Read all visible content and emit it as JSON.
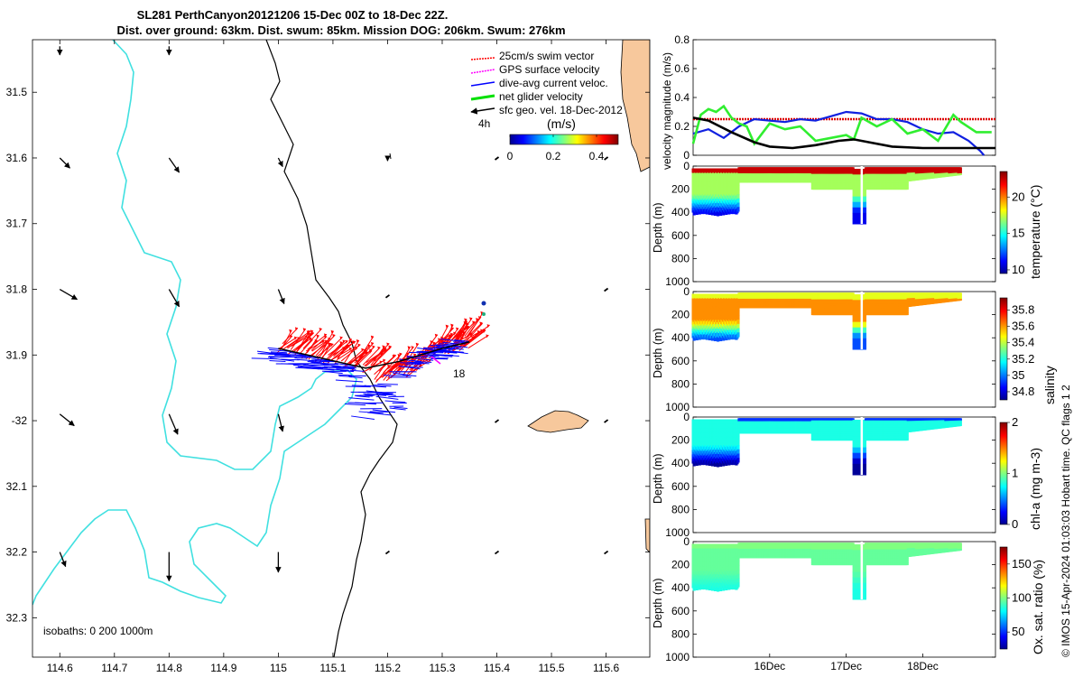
{
  "colors": {
    "land": "#f7c89c",
    "isobath_200": "#40e0e0",
    "isobath_1000": "#000000",
    "swim_vector": "#ff0000",
    "gps_velocity": "#ff00ff",
    "dive_avg": "#0000ff",
    "net_glider": "#00e000",
    "sfc_geo": "#000000"
  },
  "title": {
    "line1": "SL281 PerthCanyon20121206 15-Dec 00Z to 18-Dec 22Z.",
    "line2": "Dist. over ground: 63km. Dist. swum: 85km. Mission DOG: 206km. Swum: 276km"
  },
  "footer": "© IMOS 15-Apr-2024 01:03:03 Hobart time. QC flags 1  2",
  "chart_data": [
    {
      "type": "map",
      "xlabel": "",
      "ylabel": "",
      "xlim": [
        114.55,
        115.68
      ],
      "ylim": [
        -32.36,
        -31.42
      ],
      "x_ticks": [
        114.6,
        114.7,
        114.8,
        114.9,
        115,
        115.1,
        115.2,
        115.3,
        115.4,
        115.5,
        115.6
      ],
      "x_tick_labels": [
        "114.6",
        "114.7",
        "114.8",
        "114.9",
        "115",
        "115.1",
        "115.2",
        "115.3",
        "115.4",
        "115.5",
        "115.6"
      ],
      "y_ticks": [
        -31.5,
        -31.6,
        -31.7,
        -31.8,
        -31.9,
        -32,
        -32.1,
        -32.2,
        -32.3
      ],
      "y_tick_labels": [
        "31.5",
        "31.6",
        "31.7",
        "31.8",
        "31.9",
        "-32",
        "32.1",
        "32.2",
        "32.3"
      ],
      "legend": {
        "placement": "top-right",
        "entries": [
          "25cm/s swim vector",
          "GPS surface velocity",
          "dive-avg current veloc.",
          "net glider velocity",
          "sfc geo. vel. 18-Dec-2012"
        ]
      },
      "colorbar": {
        "label": "(m/s)",
        "ticks": [
          "0",
          "0.2",
          "0.4"
        ],
        "range": [
          0,
          0.5
        ],
        "extra_label": "4h"
      },
      "isobath_note": "isobaths: 0   200  1000m",
      "annotation": "18",
      "track": [
        [
          115.0,
          -31.89
        ],
        [
          115.08,
          -31.905
        ],
        [
          115.16,
          -31.92
        ],
        [
          115.22,
          -31.91
        ],
        [
          115.3,
          -31.89
        ],
        [
          115.35,
          -31.88
        ]
      ],
      "sfc_geo_vectors": [
        {
          "lon": 114.6,
          "lat": -31.43,
          "u": 0.0,
          "v": -0.06
        },
        {
          "lon": 114.8,
          "lat": -31.43,
          "u": 0.0,
          "v": -0.06
        },
        {
          "lon": 114.6,
          "lat": -31.6,
          "u": 0.07,
          "v": -0.07
        },
        {
          "lon": 114.8,
          "lat": -31.6,
          "u": 0.07,
          "v": -0.1
        },
        {
          "lon": 115.0,
          "lat": -31.6,
          "u": 0.03,
          "v": -0.06
        },
        {
          "lon": 115.2,
          "lat": -31.6,
          "u": 0.0,
          "v": -0.02
        },
        {
          "lon": 114.6,
          "lat": -31.8,
          "u": 0.12,
          "v": -0.07
        },
        {
          "lon": 114.8,
          "lat": -31.8,
          "u": 0.07,
          "v": -0.12
        },
        {
          "lon": 115.0,
          "lat": -31.8,
          "u": 0.04,
          "v": -0.1
        },
        {
          "lon": 114.6,
          "lat": -31.99,
          "u": 0.1,
          "v": -0.08
        },
        {
          "lon": 114.8,
          "lat": -31.99,
          "u": 0.06,
          "v": -0.14
        },
        {
          "lon": 115.0,
          "lat": -31.99,
          "u": 0.03,
          "v": -0.12
        },
        {
          "lon": 114.6,
          "lat": -32.2,
          "u": 0.04,
          "v": -0.1
        },
        {
          "lon": 114.8,
          "lat": -32.2,
          "u": 0.0,
          "v": -0.2
        },
        {
          "lon": 115.0,
          "lat": -32.2,
          "u": 0.0,
          "v": -0.14
        }
      ]
    },
    {
      "type": "line",
      "ylabel": "velocity magnitude (m/s)",
      "ylim": [
        0,
        0.8
      ],
      "y_ticks": [
        "0",
        "0.2",
        "0.4",
        "0.6",
        "0.8"
      ],
      "x_range_days": [
        15.0,
        18.95
      ],
      "series": [
        {
          "name": "25cm/s swim vector",
          "x": [
            15.0,
            18.95
          ],
          "values": [
            0.25,
            0.25
          ]
        },
        {
          "name": "dive-avg current veloc.",
          "x": [
            15.0,
            15.2,
            15.4,
            15.6,
            15.8,
            16.0,
            16.2,
            16.4,
            16.6,
            16.8,
            17.0,
            17.2,
            17.4,
            17.6,
            17.8,
            18.0,
            18.2,
            18.4,
            18.6,
            18.75,
            18.8
          ],
          "values": [
            0.15,
            0.18,
            0.12,
            0.2,
            0.25,
            0.24,
            0.23,
            0.25,
            0.24,
            0.27,
            0.3,
            0.29,
            0.25,
            0.25,
            0.23,
            0.18,
            0.15,
            0.16,
            0.1,
            0.03,
            0.0
          ]
        },
        {
          "name": "net glider velocity",
          "x": [
            15.0,
            15.1,
            15.2,
            15.3,
            15.4,
            15.5,
            15.6,
            15.7,
            15.8,
            16.0,
            16.2,
            16.4,
            16.6,
            16.8,
            17.0,
            17.1,
            17.2,
            17.4,
            17.6,
            17.8,
            18.0,
            18.2,
            18.4,
            18.5,
            18.7,
            18.9
          ],
          "values": [
            0.08,
            0.28,
            0.32,
            0.3,
            0.34,
            0.26,
            0.22,
            0.2,
            0.08,
            0.22,
            0.18,
            0.2,
            0.1,
            0.12,
            0.14,
            0.11,
            0.26,
            0.2,
            0.25,
            0.15,
            0.18,
            0.1,
            0.28,
            0.23,
            0.16,
            0.16
          ]
        },
        {
          "name": "sfc geo. vel. 18-Dec-2012",
          "x": [
            15.0,
            15.2,
            15.5,
            15.8,
            16.0,
            16.3,
            16.6,
            16.9,
            17.1,
            17.3,
            17.6,
            18.0,
            18.4,
            18.8,
            18.95
          ],
          "values": [
            0.26,
            0.24,
            0.16,
            0.09,
            0.06,
            0.05,
            0.07,
            0.1,
            0.11,
            0.09,
            0.06,
            0.05,
            0.05,
            0.05,
            0.05
          ]
        }
      ]
    },
    {
      "type": "scatter",
      "variable": "temperature (°C)",
      "ylabel": "Depth (m)",
      "ylim": [
        1000,
        0
      ],
      "y_ticks": [
        "0",
        "200",
        "400",
        "600",
        "800",
        "1000"
      ],
      "colorbar_ticks": [
        "10",
        "15",
        "20"
      ],
      "colorbar_range": [
        9.5,
        23.5
      ],
      "colormap": "jet",
      "x_range_days": [
        15.0,
        18.95
      ],
      "x_ticks": [
        "16Dec",
        "17Dec",
        "18Dec"
      ],
      "surface_value": 22.5,
      "mid_value": 17.0,
      "deep_value": 11.0
    },
    {
      "type": "scatter",
      "variable": "salinity",
      "ylabel": "Depth (m)",
      "ylim": [
        1000,
        0
      ],
      "y_ticks": [
        "0",
        "200",
        "400",
        "600",
        "800",
        "1000"
      ],
      "colorbar_ticks": [
        "34.8",
        "35",
        "35.2",
        "35.4",
        "35.6",
        "35.8"
      ],
      "colorbar_range": [
        34.7,
        35.95
      ],
      "colormap": "jet",
      "x_range_days": [
        15.0,
        18.95
      ],
      "x_ticks": [
        "16Dec",
        "17Dec",
        "18Dec"
      ],
      "surface_value": 35.45,
      "mid_value": 35.62,
      "deep_value": 34.95
    },
    {
      "type": "scatter",
      "variable": "chl-a (mg m-3)",
      "ylabel": "Depth (m)",
      "ylim": [
        1000,
        0
      ],
      "y_ticks": [
        "0",
        "200",
        "400",
        "600",
        "800",
        "1000"
      ],
      "colorbar_ticks": [
        "0",
        "1",
        "2"
      ],
      "colorbar_range": [
        0,
        2
      ],
      "colormap": "jet",
      "x_range_days": [
        15.0,
        18.95
      ],
      "x_ticks": [
        "16Dec",
        "17Dec",
        "18Dec"
      ],
      "surface_value": 0.35,
      "mid_value": 0.8,
      "deep_value": 0.05
    },
    {
      "type": "scatter",
      "variable": "Ox. sat. ratio (%)",
      "ylabel": "Depth (m)",
      "ylim": [
        1000,
        0
      ],
      "y_ticks": [
        "0",
        "200",
        "400",
        "600",
        "800",
        "1000"
      ],
      "colorbar_ticks": [
        "50",
        "100",
        "150"
      ],
      "colorbar_range": [
        25,
        175
      ],
      "colormap": "jet",
      "x_range_days": [
        15.0,
        18.95
      ],
      "x_ticks": [
        "16Dec",
        "17Dec",
        "18Dec"
      ],
      "surface_value": 100,
      "mid_value": 96,
      "deep_value": 85
    }
  ]
}
